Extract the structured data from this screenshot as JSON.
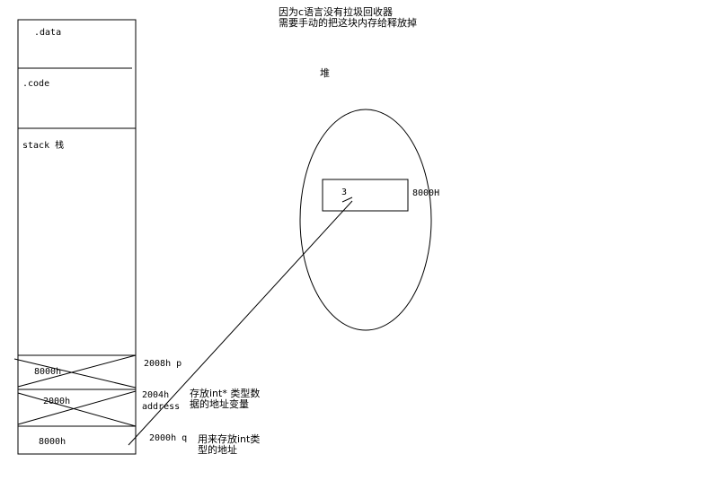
{
  "note": {
    "line1": "因为c语言没有拉圾回收器",
    "line2": "需要手动的把这块内存给释放掉"
  },
  "memory": {
    "segments": {
      "data": ".data",
      "code": ".code",
      "stack": "stack 栈"
    },
    "cells": [
      {
        "value": "8000h",
        "address": "2008h p"
      },
      {
        "value": "2000h",
        "address": "2004h",
        "address_sub": "address"
      },
      {
        "value": "8000h",
        "address": "2000h q"
      }
    ],
    "annotations": {
      "ptr_desc_line1": "存放int* 类型数",
      "ptr_desc_line2": "据的地址变量",
      "int_desc_line1": "用来存放int类",
      "int_desc_line2": "型的地址"
    }
  },
  "heap": {
    "title": "堆",
    "block_value": "3",
    "block_address": "8000H"
  }
}
